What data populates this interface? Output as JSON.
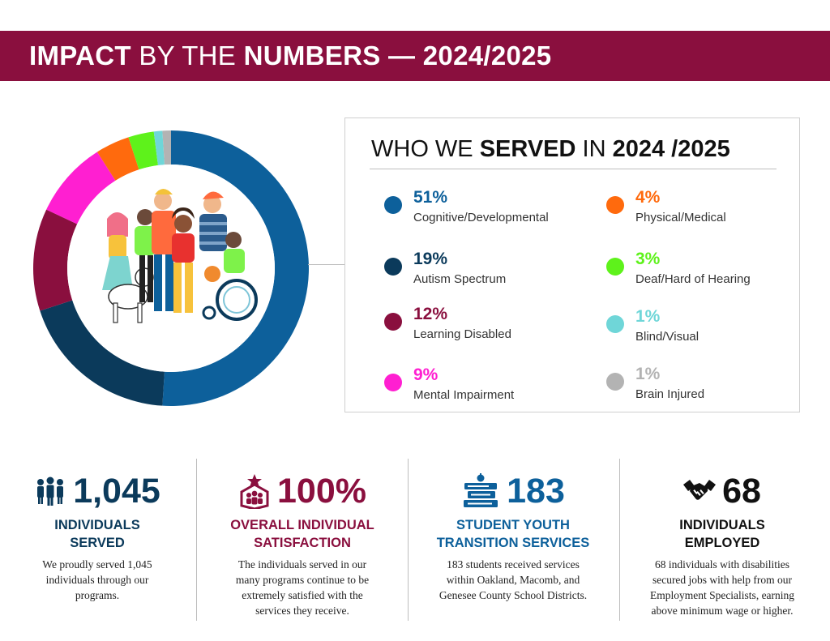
{
  "header": {
    "title_bold1": "IMPACT",
    "title_light": "BY THE",
    "title_bold2": "NUMBERS — 2024/2025"
  },
  "colors": {
    "brand": "#8a0f3e",
    "navy": "#0b3a5b",
    "blue": "#0d609b"
  },
  "legend": {
    "title_light1": "WHO WE",
    "title_bold1": "SERVED",
    "title_light2": "IN",
    "title_bold2": "2024 /2025"
  },
  "chart_data": {
    "type": "pie",
    "title": "WHO WE SERVED IN 2024 /2025",
    "slices": [
      {
        "label": "Cognitive/Developmental",
        "value": 51,
        "pct": "51%",
        "color": "#0d609b"
      },
      {
        "label": "Autism Spectrum",
        "value": 19,
        "pct": "19%",
        "color": "#0b3a5b"
      },
      {
        "label": "Learning Disabled",
        "value": 12,
        "pct": "12%",
        "color": "#8a0f3e"
      },
      {
        "label": "Mental Impairment",
        "value": 9,
        "pct": "9%",
        "color": "#ff1fd1"
      },
      {
        "label": "Physical/Medical",
        "value": 4,
        "pct": "4%",
        "color": "#ff6a0d"
      },
      {
        "label": "Deaf/Hard of Hearing",
        "value": 3,
        "pct": "3%",
        "color": "#5ef21b"
      },
      {
        "label": "Blind/Visual",
        "value": 1,
        "pct": "1%",
        "color": "#6fd6d8"
      },
      {
        "label": "Brain Injured",
        "value": 1,
        "pct": "1%",
        "color": "#b3b3b3"
      }
    ]
  },
  "stats": [
    {
      "number": "1,045",
      "label_line1": "INDIVIDUALS",
      "label_line2": "SERVED",
      "desc_lines": [
        "We proudly served 1,045",
        "individuals through our",
        "programs."
      ],
      "icon": "people-group-icon",
      "color": "#0b3a5b"
    },
    {
      "number": "100%",
      "label_line1": "OVERALL INDIVIDUAL",
      "label_line2": "SATISFACTION",
      "desc_lines": [
        "The individuals served in our",
        "many programs continue to be",
        "extremely satisfied with the",
        "services they receive."
      ],
      "icon": "star-group-badge-icon",
      "color": "#8a0f3e"
    },
    {
      "number": "183",
      "label_line1": "STUDENT YOUTH",
      "label_line2": "TRANSITION SERVICES",
      "desc_lines": [
        "183 students received services",
        "within Oakland, Macomb, and",
        "Genesee County School Districts."
      ],
      "icon": "books-apple-icon",
      "color": "#0d609b"
    },
    {
      "number": "68",
      "label_line1": "INDIVIDUALS",
      "label_line2": "EMPLOYED",
      "desc_lines": [
        "68 individuals with disabilities",
        "secured jobs with help from our",
        "Employment Specialists, earning",
        "above minimum wage or higher."
      ],
      "icon": "handshake-icon",
      "color": "#111111"
    }
  ]
}
